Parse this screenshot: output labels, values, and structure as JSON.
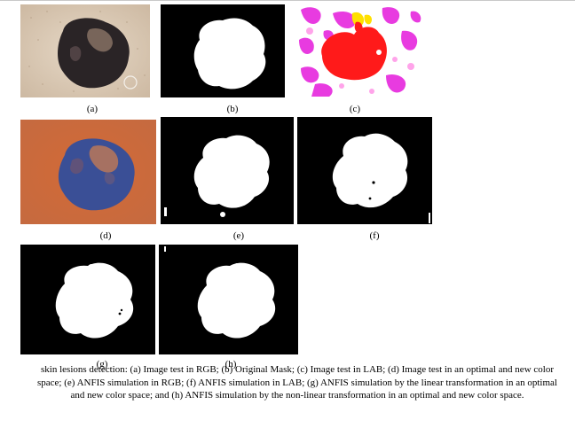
{
  "panels": [
    {
      "id": "a",
      "label": "(a)",
      "kind": "photo-rgb"
    },
    {
      "id": "b",
      "label": "(b)",
      "kind": "mask"
    },
    {
      "id": "c",
      "label": "(c)",
      "kind": "photo-lab"
    },
    {
      "id": "d",
      "label": "(d)",
      "kind": "photo-optimal"
    },
    {
      "id": "e",
      "label": "(e)",
      "kind": "mask"
    },
    {
      "id": "f",
      "label": "(f)",
      "kind": "mask"
    },
    {
      "id": "g",
      "label": "(g)",
      "kind": "mask"
    },
    {
      "id": "h",
      "label": "(h)",
      "kind": "mask"
    }
  ],
  "caption": "skin lesions detection: (a) Image test in RGB; (b) Original Mask; (c) Image test in LAB; (d) Image test in an optimal and new color space; (e) ANFIS simulation in RGB; (f) ANFIS simulation in LAB; (g) ANFIS simulation by the linear transformation in an optimal and new color space; and (h) ANFIS simulation by the non-linear transformation in an optimal and new color space.",
  "colors": {
    "mask_bg": "#000000",
    "mask_fg": "#ffffff",
    "skin": "#e2d3c0",
    "lesion_dark": "#2a2426",
    "lab_magenta": "#e83be0",
    "lab_red": "#ff1a1a",
    "lab_yellow": "#ffe000",
    "optimal_orange": "#d06a38",
    "optimal_blue": "#3a4f96"
  }
}
